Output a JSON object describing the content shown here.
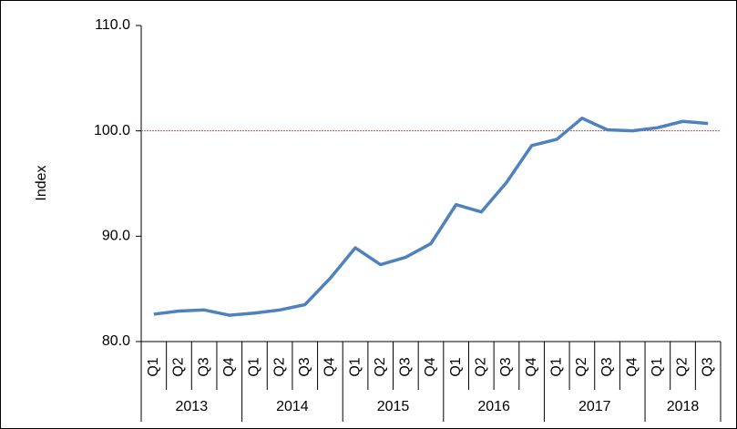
{
  "chart_data": {
    "type": "line",
    "y_label": "Index",
    "categories": [
      "Q1",
      "Q2",
      "Q3",
      "Q4",
      "Q1",
      "Q2",
      "Q3",
      "Q4",
      "Q1",
      "Q2",
      "Q3",
      "Q4",
      "Q1",
      "Q2",
      "Q3",
      "Q4",
      "Q1",
      "Q2",
      "Q3",
      "Q4",
      "Q1",
      "Q2",
      "Q3"
    ],
    "years": [
      "2013",
      "2013",
      "2013",
      "2013",
      "2014",
      "2014",
      "2014",
      "2014",
      "2015",
      "2015",
      "2015",
      "2015",
      "2016",
      "2016",
      "2016",
      "2016",
      "2017",
      "2017",
      "2017",
      "2017",
      "2018",
      "2018",
      "2018"
    ],
    "series": [
      {
        "name": "Index",
        "color": "#4f81bd",
        "values": [
          82.6,
          82.9,
          83.0,
          82.5,
          82.7,
          83.0,
          83.5,
          86.0,
          88.9,
          87.3,
          88.0,
          89.3,
          93.0,
          92.3,
          95.1,
          98.6,
          99.2,
          101.2,
          100.1,
          100.0,
          100.3,
          100.9,
          100.7
        ]
      }
    ],
    "reference_line": {
      "value": 100,
      "color": "#c0504d"
    },
    "ylim": [
      80,
      110
    ],
    "yticks": [
      {
        "value": 80,
        "label": "80.0"
      },
      {
        "value": 90,
        "label": "90.0"
      },
      {
        "value": 100,
        "label": "100.0"
      },
      {
        "value": 110,
        "label": "110.0"
      }
    ]
  }
}
